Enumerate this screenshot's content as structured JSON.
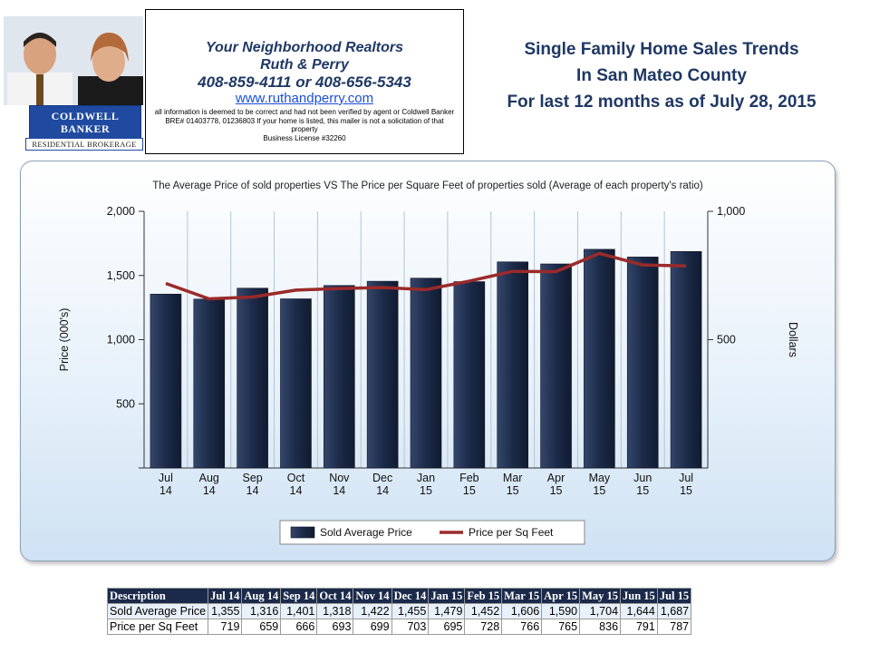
{
  "header": {
    "contact": {
      "line1": "Your  Neighborhood  Realtors",
      "line2": "Ruth & Perry",
      "line3": "408-859-4111 or  408-656-5343",
      "website": "www.ruthandperry.com",
      "disclaimer": "all information is deemed to be correct and had not been verified by agent or Coldwell Banker BRE# 01403778, 01236803 If your home is listed, this mailer is not a solicitation of that property",
      "license": "Business License #32260"
    },
    "logo": {
      "line1": "COLDWELL",
      "line2": "BANKER",
      "line3": "RESIDENTIAL BROKERAGE"
    },
    "title_lines": [
      "Single Family Home Sales Trends",
      "In San Mateo County",
      "For last 12 months as of July 28, 2015"
    ]
  },
  "chart_data": {
    "type": "bar",
    "title": "The Average Price of sold properties VS The Price per Square Feet of properties sold (Average of each property's ratio)",
    "categories": [
      "Jul 14",
      "Aug 14",
      "Sep 14",
      "Oct 14",
      "Nov 14",
      "Dec 14",
      "Jan 15",
      "Feb 15",
      "Mar 15",
      "Apr 15",
      "May 15",
      "Jun 15",
      "Jul 15"
    ],
    "series": [
      {
        "name": "Sold Average Price",
        "type": "bar",
        "axis": "left",
        "color": "#1b2a4a",
        "values": [
          1355,
          1316,
          1401,
          1318,
          1422,
          1455,
          1479,
          1452,
          1606,
          1590,
          1704,
          1644,
          1687
        ]
      },
      {
        "name": "Price per Sq Feet",
        "type": "line",
        "axis": "right",
        "color": "#9b2a2a",
        "values": [
          719,
          659,
          666,
          693,
          699,
          703,
          695,
          728,
          766,
          765,
          836,
          791,
          787
        ]
      }
    ],
    "ylabel": "Price (000's)",
    "y2label": "Dollars",
    "ylim": [
      0,
      2000
    ],
    "y2lim": [
      0,
      1000
    ],
    "yticks": [
      "500",
      "1,000",
      "1,500",
      "2,000"
    ],
    "y2ticks": [
      "500",
      "1,000"
    ],
    "grid": "vertical",
    "legend": "bottom"
  },
  "table": {
    "header": [
      "Description",
      "Jul 14",
      "Aug 14",
      "Sep 14",
      "Oct 14",
      "Nov 14",
      "Dec 14",
      "Jan 15",
      "Feb 15",
      "Mar 15",
      "Apr 15",
      "May 15",
      "Jun 15",
      "Jul 15"
    ],
    "rows": [
      [
        "Sold Average Price",
        "1,355",
        "1,316",
        "1,401",
        "1,318",
        "1,422",
        "1,455",
        "1,479",
        "1,452",
        "1,606",
        "1,590",
        "1,704",
        "1,644",
        "1,687"
      ],
      [
        "Price per Sq Feet",
        "719",
        "659",
        "666",
        "693",
        "699",
        "703",
        "695",
        "728",
        "766",
        "765",
        "836",
        "791",
        "787"
      ]
    ]
  }
}
